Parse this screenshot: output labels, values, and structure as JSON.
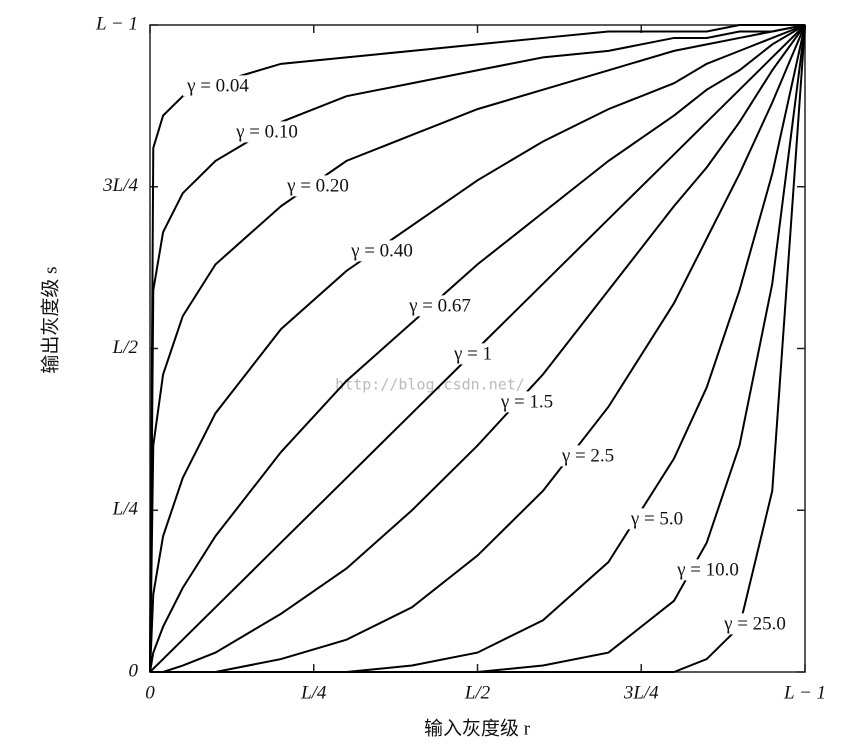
{
  "chart_data": {
    "type": "line",
    "x_label": "输入灰度级 r",
    "y_label": "输出灰度级 s",
    "watermark": "http://blog.csdn.net/",
    "x": [
      0,
      0.005,
      0.02,
      0.05,
      0.1,
      0.2,
      0.3,
      0.4,
      0.5,
      0.6,
      0.7,
      0.8,
      0.85,
      0.9,
      0.95,
      1
    ],
    "series": [
      {
        "name": "γ = 0.04",
        "color": "#000000",
        "values": [
          0,
          0.81,
          0.86,
          0.89,
          0.91,
          0.94,
          0.95,
          0.96,
          0.97,
          0.98,
          0.99,
          0.99,
          0.99,
          1,
          1,
          1
        ]
      },
      {
        "name": "γ = 0.10",
        "color": "#000000",
        "values": [
          0,
          0.59,
          0.68,
          0.74,
          0.79,
          0.85,
          0.89,
          0.91,
          0.93,
          0.95,
          0.96,
          0.98,
          0.98,
          0.99,
          0.99,
          1
        ]
      },
      {
        "name": "γ = 0.20",
        "color": "#000000",
        "values": [
          0,
          0.35,
          0.46,
          0.55,
          0.63,
          0.72,
          0.79,
          0.83,
          0.87,
          0.9,
          0.93,
          0.96,
          0.97,
          0.98,
          0.99,
          1
        ]
      },
      {
        "name": "γ = 0.40",
        "color": "#000000",
        "values": [
          0,
          0.12,
          0.21,
          0.3,
          0.4,
          0.53,
          0.62,
          0.69,
          0.76,
          0.82,
          0.87,
          0.91,
          0.94,
          0.96,
          0.98,
          1
        ]
      },
      {
        "name": "γ = 0.67",
        "color": "#000000",
        "values": [
          0,
          0.03,
          0.07,
          0.13,
          0.21,
          0.34,
          0.45,
          0.54,
          0.63,
          0.71,
          0.79,
          0.86,
          0.9,
          0.93,
          0.97,
          1
        ]
      },
      {
        "name": "γ = 1",
        "color": "#000000",
        "values": [
          0,
          0.005,
          0.02,
          0.05,
          0.1,
          0.2,
          0.3,
          0.4,
          0.5,
          0.6,
          0.7,
          0.8,
          0.85,
          0.9,
          0.95,
          1
        ]
      },
      {
        "name": "γ = 1.5",
        "color": "#000000",
        "values": [
          0,
          0,
          0,
          0.01,
          0.03,
          0.09,
          0.16,
          0.25,
          0.35,
          0.46,
          0.59,
          0.72,
          0.78,
          0.85,
          0.93,
          1
        ]
      },
      {
        "name": "γ = 2.5",
        "color": "#000000",
        "values": [
          0,
          0,
          0,
          0,
          0,
          0.02,
          0.05,
          0.1,
          0.18,
          0.28,
          0.41,
          0.57,
          0.67,
          0.77,
          0.88,
          1
        ]
      },
      {
        "name": "γ = 5.0",
        "color": "#000000",
        "values": [
          0,
          0,
          0,
          0,
          0,
          0,
          0,
          0.01,
          0.03,
          0.08,
          0.17,
          0.33,
          0.44,
          0.59,
          0.77,
          1
        ]
      },
      {
        "name": "γ = 10.0",
        "color": "#000000",
        "values": [
          0,
          0,
          0,
          0,
          0,
          0,
          0,
          0,
          0,
          0.01,
          0.03,
          0.11,
          0.2,
          0.35,
          0.6,
          1
        ]
      },
      {
        "name": "γ = 25.0",
        "color": "#000000",
        "values": [
          0,
          0,
          0,
          0,
          0,
          0,
          0,
          0,
          0,
          0,
          0,
          0,
          0.02,
          0.07,
          0.28,
          1
        ]
      }
    ],
    "xlim": [
      0,
      1
    ],
    "ylim": [
      0,
      1
    ],
    "xticks": [
      0,
      {
        "value": 0.25,
        "label": "L/4"
      },
      {
        "value": 0.5,
        "label": "L/2"
      },
      {
        "value": 0.75,
        "label": "3L/4"
      },
      {
        "value": 1,
        "label": "L − 1"
      }
    ],
    "yticks": [
      0,
      {
        "value": 0.25,
        "label": "L/4"
      },
      {
        "value": 0.5,
        "label": "L/2"
      },
      {
        "value": 0.75,
        "label": "3L/4"
      },
      {
        "value": 1,
        "label": "L − 1"
      }
    ],
    "grid": false
  }
}
